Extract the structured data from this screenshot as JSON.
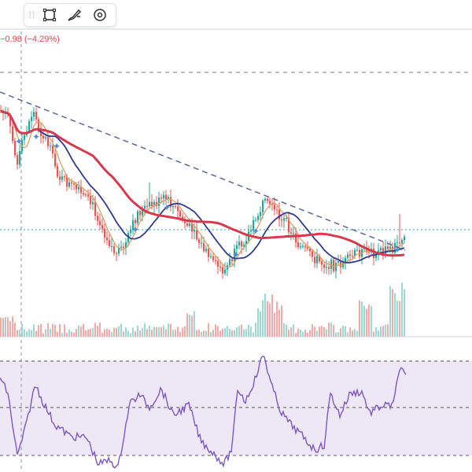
{
  "toolbar": {
    "icons": [
      "grip-icon",
      "rectangle-tool-icon",
      "brush-tool-icon",
      "settings-icon"
    ]
  },
  "change_label": "−0.98 (−4.29%)",
  "colors": {
    "up": "#26a69a",
    "down": "#ef5350",
    "ma_fast": "#d9a066",
    "ma_slow": "#303c8f",
    "ma_long": "#d63a4e",
    "trendline": "#5c6796",
    "rsi_line": "#7e57c2",
    "rsi_band": "#ede7f6",
    "crosshair": "#8a8f9c",
    "price_level": "#26a69a"
  },
  "chart_data": [
    {
      "type": "candlestick",
      "title": "",
      "has_moving_averages": true,
      "moving_averages": [
        "fast",
        "slow",
        "long"
      ],
      "trendline": "descending-dashed",
      "volume_subpane": true,
      "grid": false
    },
    {
      "type": "line",
      "title": "",
      "indicator_band": true,
      "band_levels": 2,
      "grid": false
    }
  ]
}
